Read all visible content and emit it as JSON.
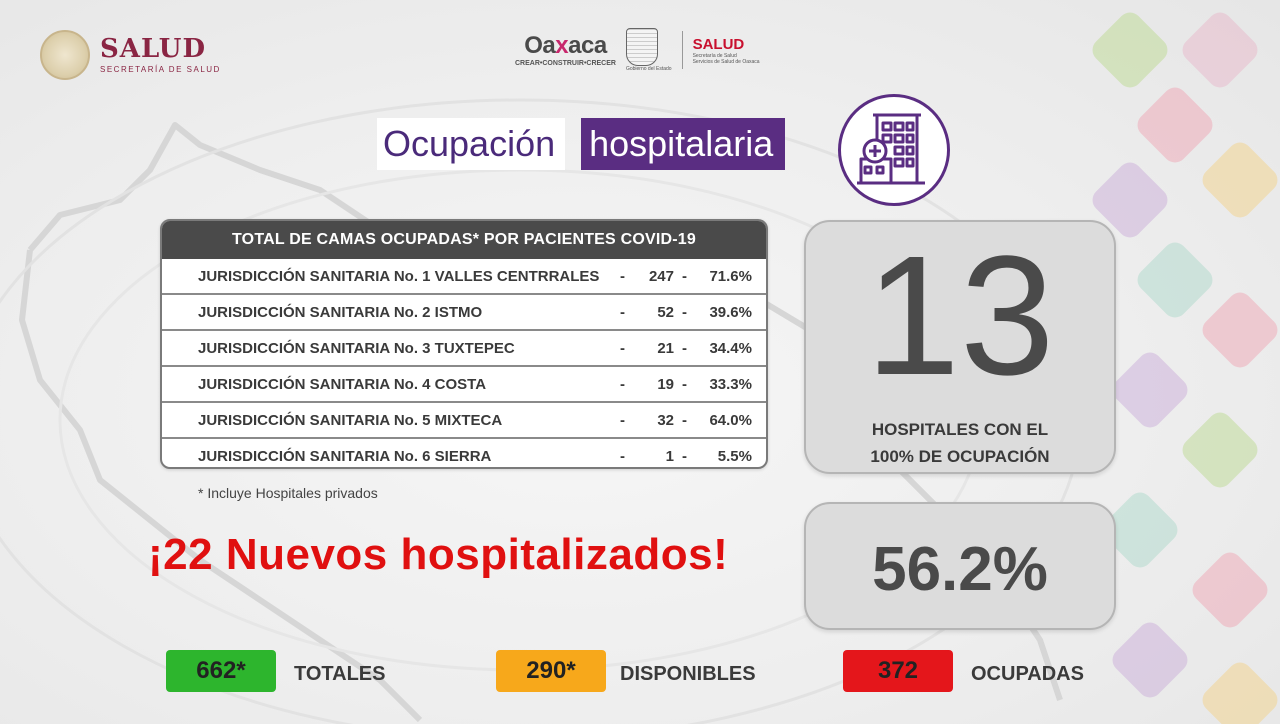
{
  "header": {
    "salud_title": "SALUD",
    "salud_subtitle": "SECRETARÍA DE SALUD",
    "oaxaca_name_a": "Oa",
    "oaxaca_name_x": "x",
    "oaxaca_name_b": "aca",
    "oaxaca_tagline": "CREAR•CONSTRUIR•CRECER",
    "gobierno_label": "Gobierno del Estado",
    "oaxaca_salud_title": "SALUD",
    "oaxaca_salud_sub1": "Secretaría de Salud",
    "oaxaca_salud_sub2": "Servicios de Salud de Oaxaca"
  },
  "title": {
    "part1": "Ocupación",
    "part2": "hospitalaria"
  },
  "table": {
    "header": "TOTAL DE CAMAS OCUPADAS* POR PACIENTES COVID-19",
    "rows": [
      {
        "name": "JURISDICCIÓN SANITARIA No. 1  VALLES CENTRRALES",
        "dash1": "-",
        "count": "247",
        "dash2": "-",
        "pct": "71.6%"
      },
      {
        "name": "JURISDICCIÓN SANITARIA No. 2  ISTMO",
        "dash1": "-",
        "count": "52",
        "dash2": "-",
        "pct": "39.6%"
      },
      {
        "name": "JURISDICCIÓN SANITARIA No. 3 TUXTEPEC",
        "dash1": "-",
        "count": "21",
        "dash2": "-",
        "pct": "34.4%"
      },
      {
        "name": "JURISDICCIÓN SANITARIA No. 4 COSTA",
        "dash1": "-",
        "count": "19",
        "dash2": "-",
        "pct": "33.3%"
      },
      {
        "name": "JURISDICCIÓN SANITARIA No. 5 MIXTECA",
        "dash1": "-",
        "count": "32",
        "dash2": "-",
        "pct": "64.0%"
      },
      {
        "name": "JURISDICCIÓN SANITARIA No. 6 SIERRA",
        "dash1": "-",
        "count": "1",
        "dash2": "-",
        "pct": "5.5%"
      }
    ],
    "footnote": "* Incluye Hospitales privados"
  },
  "stats": {
    "hospitals_full": "13",
    "hospitals_full_label_1": "HOSPITALES CON EL",
    "hospitals_full_label_2": "100% DE OCUPACIÓN",
    "occupancy_pct": "56.2%"
  },
  "headline": "¡22  Nuevos hospitalizados!",
  "totals": {
    "total_value": "662*",
    "total_label": "TOTALES",
    "available_value": "290*",
    "available_label": "DISPONIBLES",
    "occupied_value": "372",
    "occupied_label": "OCUPADAS"
  },
  "icons": [
    "emblem-icon",
    "oaxaca-shield-icon",
    "hospital-building-icon"
  ],
  "colors": {
    "salud_brand": "#8a2543",
    "title_purple": "#5a2d82",
    "headline_red": "#e01010",
    "total_green": "#2db52d",
    "available_orange": "#f7a81b",
    "occupied_red": "#e4161b"
  }
}
